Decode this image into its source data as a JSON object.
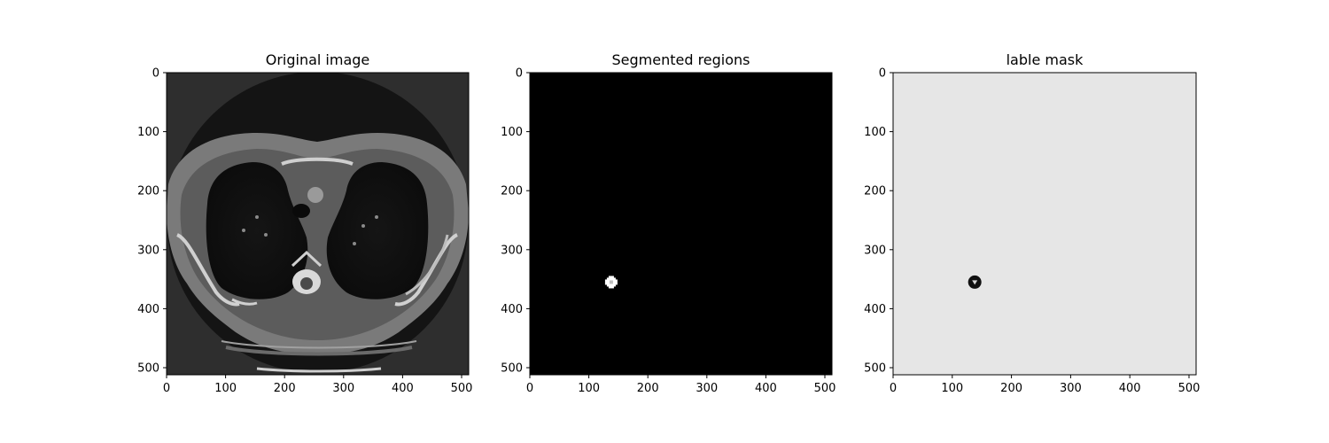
{
  "figure": {
    "panels": [
      {
        "id": "original",
        "title": "Original image",
        "kind": "ct-scan",
        "background_color": "#2e2e2e"
      },
      {
        "id": "segmented",
        "title": "Segmented regions",
        "kind": "segmentation",
        "background_color": "#000000",
        "spot": {
          "x": 138,
          "y": 355,
          "color": "#ffffff"
        }
      },
      {
        "id": "mask",
        "title": "lable mask",
        "kind": "mask",
        "background_color": "#e6e6e6",
        "spot": {
          "x": 138,
          "y": 355,
          "color": "#111111"
        }
      }
    ],
    "x_ticks": [
      "0",
      "100",
      "200",
      "300",
      "400",
      "500"
    ],
    "y_ticks": [
      "0",
      "100",
      "200",
      "300",
      "400",
      "500"
    ],
    "axis_max": 512
  }
}
